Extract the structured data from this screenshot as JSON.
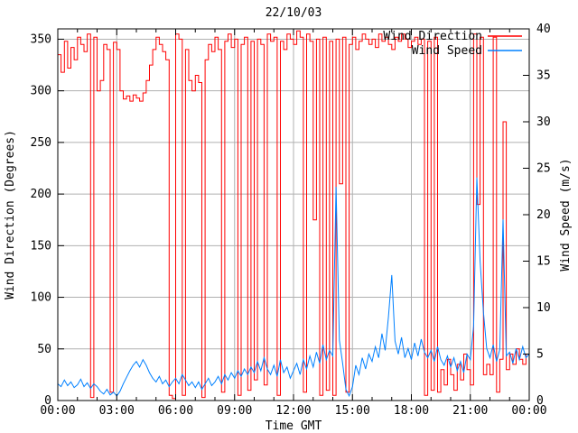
{
  "title": "22/10/03",
  "legend": [
    {
      "label": "Wind Direction",
      "color": "#ff0000"
    },
    {
      "label": "Wind Speed",
      "color": "#0080ff"
    }
  ],
  "colors": {
    "direction": "#ff0000",
    "speed": "#0080ff",
    "grid": "#b0b0b0",
    "border": "#000000",
    "background": "#ffffff"
  },
  "chart_data": {
    "type": "line",
    "title": "22/10/03",
    "xlabel": "Time GMT",
    "ylabel_left": "Wind Direction (Degrees)",
    "ylabel_right": "Wind Speed (m/s)",
    "x_ticks": [
      "00:00",
      "03:00",
      "06:00",
      "09:00",
      "12:00",
      "15:00",
      "18:00",
      "21:00",
      "00:00"
    ],
    "y_left_ticks": [
      0,
      50,
      100,
      150,
      200,
      250,
      300,
      350
    ],
    "y_right_ticks": [
      0,
      5,
      10,
      15,
      20,
      25,
      30,
      35,
      40
    ],
    "ylim_left": [
      0,
      360
    ],
    "ylim_right": [
      0,
      40
    ],
    "grid": true,
    "legend_position": "top-right-inside",
    "x_unit": "minutes since 00:00 GMT",
    "x_start_min": 0,
    "x_step_min": 10,
    "x_total_min": 1440,
    "series": [
      {
        "name": "Wind Direction",
        "axis": "left",
        "unit": "degrees",
        "color": "#ff0000",
        "style": "steps",
        "values": [
          335,
          318,
          348,
          322,
          342,
          330,
          352,
          345,
          338,
          355,
          3,
          352,
          300,
          310,
          345,
          340,
          8,
          347,
          340,
          300,
          292,
          295,
          290,
          296,
          293,
          290,
          298,
          310,
          325,
          340,
          352,
          345,
          338,
          330,
          5,
          2,
          355,
          350,
          5,
          340,
          310,
          300,
          315,
          308,
          3,
          330,
          345,
          338,
          352,
          340,
          8,
          348,
          355,
          342,
          350,
          5,
          345,
          352,
          10,
          348,
          20,
          350,
          345,
          15,
          355,
          348,
          352,
          5,
          348,
          340,
          355,
          350,
          345,
          358,
          352,
          8,
          355,
          348,
          175,
          350,
          5,
          352,
          10,
          348,
          5,
          350,
          210,
          352,
          8,
          345,
          352,
          340,
          348,
          355,
          350,
          345,
          350,
          342,
          355,
          348,
          352,
          345,
          340,
          352,
          348,
          355,
          350,
          342,
          348,
          352,
          345,
          350,
          5,
          348,
          10,
          352,
          8,
          30,
          15,
          40,
          25,
          10,
          35,
          20,
          45,
          30,
          15,
          355,
          190,
          352,
          25,
          35,
          25,
          352,
          8,
          40,
          270,
          30,
          45,
          35,
          50,
          40,
          35,
          45,
          40
        ]
      },
      {
        "name": "Wind Speed",
        "axis": "right",
        "unit": "m/s",
        "color": "#0080ff",
        "style": "lines",
        "values": [
          1.8,
          1.5,
          2.2,
          1.6,
          2.0,
          1.4,
          1.7,
          2.3,
          1.5,
          1.9,
          1.3,
          1.8,
          1.5,
          1.0,
          0.7,
          1.2,
          0.6,
          0.9,
          0.5,
          1.0,
          1.8,
          2.5,
          3.2,
          3.8,
          4.2,
          3.6,
          4.4,
          3.8,
          3.0,
          2.4,
          2.0,
          2.6,
          1.8,
          2.2,
          1.5,
          2.0,
          2.4,
          1.8,
          2.8,
          2.2,
          1.6,
          2.0,
          1.4,
          2.0,
          1.2,
          1.8,
          2.4,
          1.6,
          2.0,
          2.6,
          1.8,
          2.8,
          2.2,
          3.0,
          2.4,
          3.2,
          2.6,
          3.4,
          2.8,
          3.6,
          3.0,
          4.2,
          3.2,
          4.6,
          3.4,
          2.8,
          3.8,
          2.6,
          4.4,
          3.0,
          3.6,
          2.4,
          3.2,
          4.0,
          2.8,
          4.4,
          3.4,
          4.8,
          3.6,
          5.2,
          4.0,
          6.0,
          4.4,
          5.4,
          4.8,
          23.0,
          6.5,
          4.0,
          1.2,
          0.5,
          1.5,
          3.8,
          2.8,
          4.6,
          3.4,
          5.0,
          4.2,
          5.8,
          4.6,
          7.2,
          5.4,
          9.0,
          13.5,
          6.4,
          5.0,
          6.8,
          4.6,
          5.6,
          4.4,
          6.2,
          4.8,
          6.6,
          5.2,
          4.6,
          5.4,
          4.2,
          5.8,
          4.4,
          3.8,
          4.8,
          3.6,
          4.6,
          3.2,
          4.2,
          3.0,
          5.0,
          4.4,
          8.0,
          24.0,
          15.0,
          9.5,
          5.6,
          4.6,
          6.0,
          4.2,
          5.5,
          19.5,
          4.8,
          5.2,
          4.0,
          5.6,
          4.4,
          5.8,
          4.6,
          5.0
        ]
      }
    ]
  }
}
